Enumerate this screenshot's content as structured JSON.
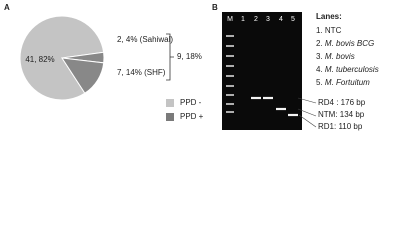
{
  "chart_data": {
    "type": "pie",
    "panel_label": "A",
    "values": [
      41,
      2,
      7
    ],
    "value_labels": [
      "41, 82%",
      "2, 4% (Sahiwal)",
      "7, 14% (SHF)"
    ],
    "colors": [
      "#c4c4c4",
      "#888888",
      "#888888"
    ],
    "group_label": {
      "value": 9,
      "label": "9, 18%"
    },
    "legend": [
      {
        "name": "PPD -",
        "color": "#c4c4c4"
      },
      {
        "name": "PPD +",
        "color": "#7a7a7a"
      }
    ]
  },
  "gel": {
    "panel_label": "B",
    "lane_labels": [
      "M",
      "1",
      "2",
      "3",
      "4",
      "5"
    ],
    "lanes_title": "Lanes:",
    "lanes": [
      {
        "num": "1.",
        "name": "NTC",
        "italic": false
      },
      {
        "num": "2.",
        "name": "M. bovis BCG",
        "italic": true
      },
      {
        "num": "3.",
        "name": "M. bovis",
        "italic": true
      },
      {
        "num": "4.",
        "name": "M. tuberculosis",
        "italic": true
      },
      {
        "num": "5.",
        "name": "M. Fortuitum",
        "italic": true
      }
    ],
    "band_labels": [
      "RD4 : 176 bp",
      "NTM: 134 bp",
      "RD1: 110 bp"
    ]
  }
}
